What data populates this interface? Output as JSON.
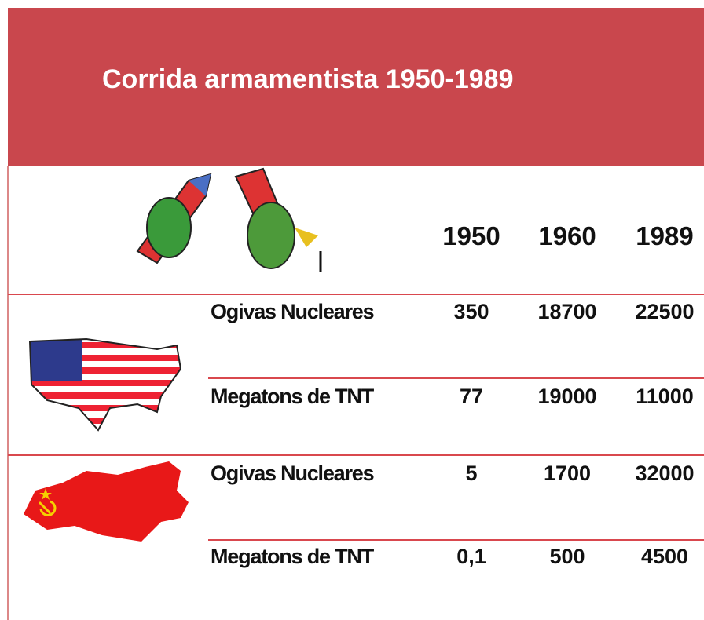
{
  "header": {
    "title": "Corrida armamentista 1950-1989"
  },
  "table": {
    "columns": [
      "1950",
      "1960",
      "1989"
    ],
    "groups": [
      {
        "rows": [
          {
            "label": "Ogivas Nucleares",
            "values": [
              "350",
              "18700",
              "22500"
            ]
          },
          {
            "label": "Megatons de TNT",
            "values": [
              "77",
              "19000",
              "11000"
            ]
          }
        ]
      },
      {
        "rows": [
          {
            "label": "Ogivas Nucleares",
            "values": [
              "5",
              "1700",
              "32000"
            ]
          },
          {
            "label": "Megatons de TNT",
            "values": [
              "0,1",
              "500",
              "4500"
            ]
          }
        ]
      }
    ]
  }
}
